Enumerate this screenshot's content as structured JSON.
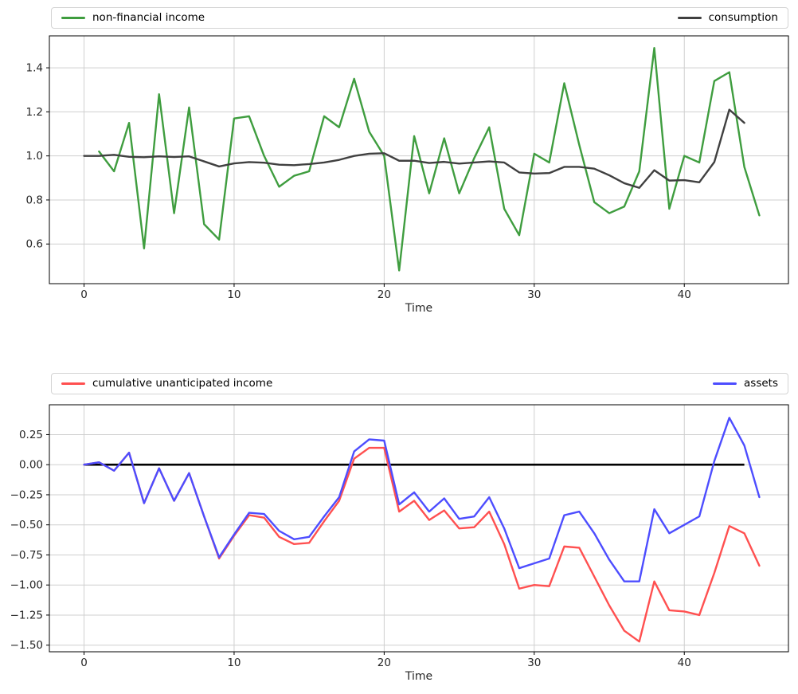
{
  "figure": {
    "background": "#ffffff"
  },
  "chart_data": [
    {
      "type": "line",
      "title": "",
      "xlabel": "Time",
      "ylabel": "",
      "xlim": [
        -2.31,
        46.94
      ],
      "ylim": [
        0.42,
        1.545
      ],
      "grid": true,
      "legend_position": "above-expanded",
      "x_ticks": {
        "values": [
          0,
          10,
          20,
          30,
          40
        ],
        "labels": [
          "0",
          "10",
          "20",
          "30",
          "40"
        ]
      },
      "y_ticks": {
        "values": [
          1.4,
          1.2,
          1.0,
          0.8,
          0.6
        ],
        "labels": [
          "1.4",
          "1.2",
          "1.0",
          "0.8",
          "0.6"
        ]
      },
      "legend": [
        {
          "label": "non-financial income",
          "color": "#3f9d3f",
          "position": "left"
        },
        {
          "label": "consumption",
          "color": "#404040",
          "position": "right"
        }
      ],
      "series": [
        {
          "name": "non-financial income",
          "color": "#3f9d3f",
          "x_start": 1,
          "values": [
            1.02,
            0.93,
            1.15,
            0.58,
            1.28,
            0.74,
            1.22,
            0.69,
            0.62,
            1.17,
            1.18,
            1.0,
            0.86,
            0.91,
            0.93,
            1.18,
            1.13,
            1.35,
            1.11,
            1.0,
            0.48,
            1.09,
            0.83,
            1.08,
            0.83,
            0.99,
            1.13,
            0.76,
            0.64,
            1.01,
            0.97,
            1.33,
            1.05,
            0.79,
            0.74,
            0.77,
            0.93,
            1.49,
            0.76,
            1.0,
            0.97,
            1.34,
            1.38,
            0.95,
            0.73
          ]
        },
        {
          "name": "consumption",
          "color": "#404040",
          "x_start": 0,
          "values": [
            1.0,
            1.0,
            1.005,
            0.996,
            0.994,
            0.998,
            0.995,
            0.998,
            0.975,
            0.952,
            0.966,
            0.972,
            0.969,
            0.96,
            0.958,
            0.963,
            0.97,
            0.982,
            1.0,
            1.01,
            1.012,
            0.978,
            0.978,
            0.968,
            0.973,
            0.965,
            0.97,
            0.975,
            0.97,
            0.925,
            0.92,
            0.922,
            0.95,
            0.95,
            0.942,
            0.912,
            0.876,
            0.855,
            0.935,
            0.888,
            0.89,
            0.88,
            0.972,
            1.21,
            1.15
          ]
        }
      ]
    },
    {
      "type": "line",
      "title": "",
      "xlabel": "Time",
      "ylabel": "",
      "xlim": [
        -2.31,
        46.94
      ],
      "ylim": [
        -1.555,
        0.498
      ],
      "grid": true,
      "legend_position": "above-expanded",
      "x_ticks": {
        "values": [
          0,
          10,
          20,
          30,
          40
        ],
        "labels": [
          "0",
          "10",
          "20",
          "30",
          "40"
        ]
      },
      "y_ticks": {
        "values": [
          0.25,
          0.0,
          -0.25,
          -0.5,
          -0.75,
          -1.0,
          -1.25,
          -1.5
        ],
        "labels": [
          "0.25",
          "0.00",
          "−0.25",
          "−0.50",
          "−0.75",
          "−1.00",
          "−1.25",
          "−1.50"
        ]
      },
      "baseline": {
        "y": 0,
        "x_range": [
          0,
          44
        ],
        "color": "#000000"
      },
      "legend": [
        {
          "label": "cumulative unanticipated income",
          "color": "#ff5050",
          "position": "left"
        },
        {
          "label": "assets",
          "color": "#4d4dff",
          "position": "right"
        }
      ],
      "series": [
        {
          "name": "cumulative unanticipated income",
          "color": "#ff5050",
          "x_start": 0,
          "values": [
            0.0,
            0.02,
            -0.05,
            0.1,
            -0.32,
            -0.03,
            -0.3,
            -0.07,
            -0.43,
            -0.78,
            -0.59,
            -0.42,
            -0.44,
            -0.6,
            -0.66,
            -0.65,
            -0.47,
            -0.3,
            0.05,
            0.14,
            0.14,
            -0.39,
            -0.3,
            -0.46,
            -0.38,
            -0.53,
            -0.52,
            -0.39,
            -0.66,
            -1.03,
            -1.0,
            -1.01,
            -0.68,
            -0.69,
            -0.93,
            -1.17,
            -1.38,
            -1.47,
            -0.97,
            -1.21,
            -1.22,
            -1.25,
            -0.9,
            -0.51,
            -0.57,
            -0.84
          ]
        },
        {
          "name": "assets",
          "color": "#4d4dff",
          "x_start": 0,
          "values": [
            0.0,
            0.02,
            -0.05,
            0.1,
            -0.32,
            -0.03,
            -0.3,
            -0.07,
            -0.43,
            -0.77,
            -0.58,
            -0.4,
            -0.41,
            -0.55,
            -0.62,
            -0.6,
            -0.43,
            -0.27,
            0.11,
            0.21,
            0.2,
            -0.33,
            -0.23,
            -0.39,
            -0.28,
            -0.45,
            -0.43,
            -0.27,
            -0.53,
            -0.86,
            -0.82,
            -0.78,
            -0.42,
            -0.39,
            -0.57,
            -0.79,
            -0.97,
            -0.97,
            -0.37,
            -0.57,
            -0.5,
            -0.43,
            0.03,
            0.39,
            0.16,
            -0.27
          ]
        }
      ]
    }
  ]
}
